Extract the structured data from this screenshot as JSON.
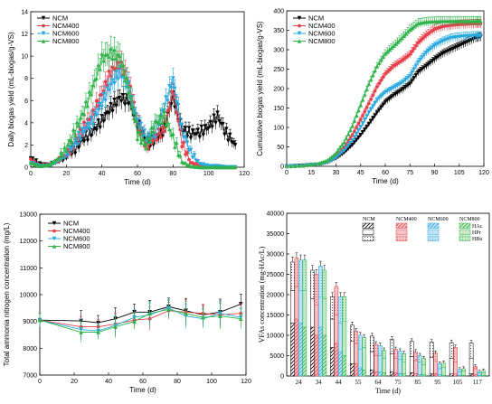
{
  "colors": {
    "NCM": "#000000",
    "NCM400": "#e8404b",
    "NCM600": "#29a9e0",
    "NCM800": "#2fb34a"
  },
  "chart_data": [
    {
      "type": "line",
      "xlabel": "Time (d)",
      "ylabel": "Daily biogas yield (mL-biogas/g-VS)",
      "xlim": [
        0,
        120
      ],
      "ylim": [
        0,
        14
      ],
      "xticks": [
        "0",
        "20",
        "40",
        "60",
        "80",
        "100",
        "120"
      ],
      "yticks": [
        "0",
        "2",
        "4",
        "6",
        "8",
        "10",
        "12",
        "14"
      ],
      "legend_position": "top-left",
      "x": [
        0,
        5,
        10,
        15,
        20,
        25,
        30,
        35,
        40,
        45,
        50,
        55,
        60,
        65,
        70,
        75,
        80,
        85,
        90,
        95,
        100,
        105,
        110,
        115
      ],
      "series": [
        {
          "name": "NCM",
          "values": [
            0.8,
            0.3,
            0.2,
            0.5,
            0.9,
            1.6,
            2.6,
            3.2,
            4.2,
            5.3,
            6.2,
            6.0,
            4.0,
            2.2,
            2.4,
            3.4,
            6.4,
            3.4,
            3.0,
            3.1,
            3.6,
            4.6,
            3.0,
            2.0
          ]
        },
        {
          "name": "NCM400",
          "values": [
            0.6,
            0.2,
            0.2,
            0.6,
            1.1,
            2.3,
            3.6,
            4.8,
            6.6,
            8.6,
            9.3,
            7.8,
            3.8,
            1.9,
            2.7,
            3.4,
            7.1,
            2.2,
            0.4,
            0.2,
            0.1,
            0.1,
            0.0,
            0.0
          ]
        },
        {
          "name": "NCM600",
          "values": [
            0.4,
            0.1,
            0.1,
            0.5,
            1.1,
            2.2,
            3.3,
            4.2,
            5.8,
            7.4,
            8.6,
            7.2,
            4.1,
            2.6,
            3.1,
            5.4,
            7.9,
            3.4,
            1.3,
            0.3,
            0.1,
            0.1,
            0.0,
            0.0
          ]
        },
        {
          "name": "NCM800",
          "values": [
            0.4,
            0.1,
            0.2,
            0.7,
            1.7,
            3.3,
            5.1,
            7.3,
            9.8,
            10.3,
            10.0,
            7.1,
            3.0,
            1.9,
            4.0,
            4.6,
            2.7,
            0.5,
            0.1,
            0.0,
            0.0,
            0.0,
            0.0,
            0.0
          ]
        }
      ]
    },
    {
      "type": "line",
      "xlabel": "Time (d)",
      "ylabel": "Cumulative biogas yield (mL-biogas/g-VS)",
      "xlim": [
        0,
        120
      ],
      "ylim": [
        0,
        400
      ],
      "xticks": [
        "0",
        "15",
        "30",
        "45",
        "60",
        "75",
        "90",
        "105",
        "120"
      ],
      "yticks": [
        "0",
        "50",
        "100",
        "150",
        "200",
        "250",
        "300",
        "350",
        "400"
      ],
      "legend_position": "top-left",
      "x": [
        0,
        10,
        20,
        25,
        30,
        35,
        40,
        45,
        50,
        55,
        60,
        65,
        70,
        75,
        80,
        85,
        90,
        95,
        100,
        105,
        110,
        115,
        118
      ],
      "series": [
        {
          "name": "NCM",
          "values": [
            0,
            2,
            5,
            10,
            20,
            35,
            55,
            80,
            108,
            138,
            165,
            182,
            196,
            212,
            242,
            258,
            275,
            290,
            300,
            310,
            320,
            330,
            333
          ]
        },
        {
          "name": "NCM400",
          "values": [
            0,
            2,
            6,
            12,
            26,
            48,
            80,
            120,
            162,
            205,
            238,
            258,
            272,
            288,
            318,
            338,
            353,
            360,
            363,
            365,
            366,
            367,
            367
          ]
        },
        {
          "name": "NCM600",
          "values": [
            0,
            1,
            5,
            10,
            22,
            40,
            66,
            100,
            138,
            170,
            190,
            202,
            214,
            232,
            268,
            293,
            310,
            322,
            330,
            333,
            335,
            336,
            336
          ]
        },
        {
          "name": "NCM800",
          "values": [
            0,
            2,
            8,
            16,
            34,
            62,
            104,
            158,
            212,
            258,
            290,
            310,
            330,
            352,
            368,
            372,
            373,
            374,
            374,
            374,
            374,
            374,
            374
          ]
        }
      ]
    },
    {
      "type": "line",
      "xlabel": "Time (d)",
      "ylabel": "Total ammonia nitrogen concentration (mg/L)",
      "xlim": [
        0,
        120
      ],
      "ylim": [
        7000,
        13000
      ],
      "xticks": [
        "0",
        "20",
        "40",
        "60",
        "80",
        "100",
        "120"
      ],
      "yticks": [
        "7000",
        "8000",
        "9000",
        "10000",
        "11000",
        "12000",
        "13000"
      ],
      "legend_position": "top-left",
      "x": [
        0,
        24,
        34,
        44,
        55,
        64,
        75,
        85,
        95,
        105,
        117
      ],
      "series": [
        {
          "name": "NCM",
          "values": [
            9050,
            9020,
            8950,
            9100,
            9350,
            9350,
            9550,
            9400,
            9250,
            9350,
            9650
          ]
        },
        {
          "name": "NCM400",
          "values": [
            9050,
            8800,
            8800,
            8900,
            9050,
            9100,
            9400,
            9350,
            9300,
            9250,
            9300
          ]
        },
        {
          "name": "NCM600",
          "values": [
            9050,
            8700,
            8650,
            8850,
            9150,
            9250,
            9500,
            9200,
            9100,
            9300,
            9150
          ]
        },
        {
          "name": "NCM800",
          "values": [
            9050,
            8600,
            8600,
            8800,
            9000,
            9300,
            9450,
            9300,
            9150,
            9200,
            9100
          ]
        }
      ]
    },
    {
      "type": "bar",
      "xlabel": "Time (d)",
      "ylabel": "VFAs concentration (mg-HAc/L)",
      "ylim": [
        0,
        40000
      ],
      "yticks": [
        "0",
        "5000",
        "10000",
        "15000",
        "20000",
        "25000",
        "30000",
        "35000",
        "40000"
      ],
      "categories": [
        "24",
        "34",
        "44",
        "55",
        "64",
        "75",
        "85",
        "95",
        "105",
        "117"
      ],
      "groups": [
        "NCM",
        "NCM400",
        "NCM600",
        "NCM800"
      ],
      "components": [
        "HAc",
        "HPr",
        "HBu"
      ],
      "series": [
        {
          "name": "NCM-HAc",
          "values": [
            13000,
            12000,
            7000,
            3000,
            1500,
            1000,
            800,
            500,
            500,
            600
          ]
        },
        {
          "name": "NCM-HPr",
          "values": [
            8000,
            7000,
            7000,
            5500,
            4500,
            4500,
            4000,
            4000,
            3800,
            3700
          ]
        },
        {
          "name": "NCM-HBu",
          "values": [
            7000,
            7000,
            5500,
            4000,
            3800,
            3500,
            3700,
            3800,
            3900,
            3800
          ]
        },
        {
          "name": "NCM400-HAc",
          "values": [
            14000,
            10000,
            8000,
            3000,
            1000,
            800,
            600,
            600,
            500,
            300
          ]
        },
        {
          "name": "NCM400-HPr",
          "values": [
            8000,
            7500,
            7000,
            5000,
            4000,
            3500,
            3200,
            3000,
            3000,
            1500
          ]
        },
        {
          "name": "NCM400-HBu",
          "values": [
            7000,
            7500,
            7000,
            3000,
            2800,
            2200,
            2100,
            2000,
            3500,
            500
          ]
        },
        {
          "name": "NCM600-HAc",
          "values": [
            13000,
            12000,
            6000,
            2000,
            1000,
            600,
            400,
            300,
            200,
            200
          ]
        },
        {
          "name": "NCM600-HPr",
          "values": [
            8000,
            7500,
            7000,
            4500,
            4000,
            3500,
            3000,
            1500,
            800,
            500
          ]
        },
        {
          "name": "NCM600-HBu",
          "values": [
            7500,
            7500,
            6500,
            3500,
            2500,
            2000,
            1600,
            1200,
            600,
            300
          ]
        },
        {
          "name": "NCM800-HAc",
          "values": [
            12000,
            10000,
            5000,
            1500,
            800,
            500,
            300,
            200,
            200,
            200
          ]
        },
        {
          "name": "NCM800-HPr",
          "values": [
            9000,
            9000,
            8500,
            5500,
            3500,
            3000,
            2500,
            2000,
            1000,
            600
          ]
        },
        {
          "name": "NCM800-HBu",
          "values": [
            7500,
            7000,
            6000,
            2500,
            2000,
            2000,
            1500,
            1000,
            600,
            500
          ]
        }
      ]
    }
  ]
}
